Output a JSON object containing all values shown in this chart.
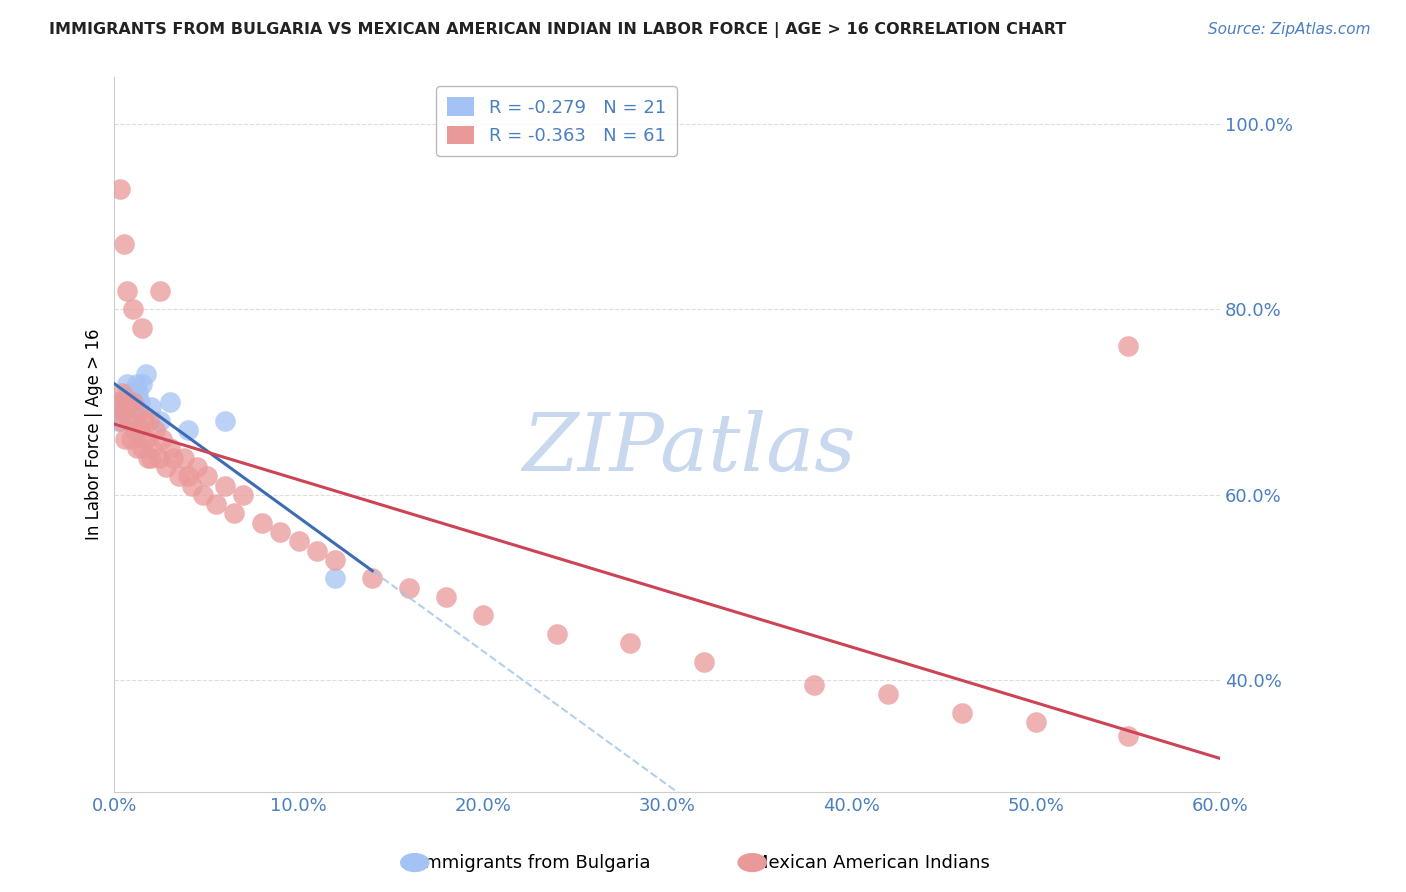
{
  "title": "IMMIGRANTS FROM BULGARIA VS MEXICAN AMERICAN INDIAN IN LABOR FORCE | AGE > 16 CORRELATION CHART",
  "source": "Source: ZipAtlas.com",
  "ylabel": "In Labor Force | Age > 16",
  "xlim": [
    0.0,
    0.6
  ],
  "ylim": [
    0.28,
    1.05
  ],
  "yticks": [
    0.4,
    0.6,
    0.8,
    1.0
  ],
  "ytick_labels": [
    "40.0%",
    "60.0%",
    "80.0%",
    "100.0%"
  ],
  "xticks": [
    0.0,
    0.1,
    0.2,
    0.3,
    0.4,
    0.5,
    0.6
  ],
  "xtick_labels": [
    "0.0%",
    "10.0%",
    "20.0%",
    "30.0%",
    "40.0%",
    "50.0%",
    "60.0%"
  ],
  "legend_entries": [
    {
      "label": "R = -0.279   N = 21",
      "color": "#a4c2f4"
    },
    {
      "label": "R = -0.363   N = 61",
      "color": "#ea9999"
    }
  ],
  "bulgaria_color": "#a4c2f4",
  "mexican_color": "#ea9999",
  "bulgaria_line_color": "#3d6cb5",
  "mexican_line_color": "#cc4455",
  "bulgaria_dash_color": "#9fc5e8",
  "axis_label_color": "#4a7fc1",
  "title_color": "#222222",
  "grid_color": "#dddddd",
  "watermark": "ZIPatlas",
  "watermark_color": "#c8d8ee",
  "bul_x": [
    0.002,
    0.003,
    0.004,
    0.005,
    0.006,
    0.007,
    0.008,
    0.009,
    0.01,
    0.011,
    0.012,
    0.013,
    0.014,
    0.015,
    0.017,
    0.02,
    0.025,
    0.03,
    0.04,
    0.06,
    0.12
  ],
  "bul_y": [
    0.68,
    0.69,
    0.695,
    0.7,
    0.705,
    0.72,
    0.71,
    0.7,
    0.695,
    0.685,
    0.72,
    0.71,
    0.7,
    0.72,
    0.73,
    0.695,
    0.68,
    0.7,
    0.67,
    0.68,
    0.51
  ],
  "mex_x": [
    0.002,
    0.003,
    0.004,
    0.005,
    0.006,
    0.007,
    0.008,
    0.009,
    0.01,
    0.011,
    0.012,
    0.013,
    0.014,
    0.015,
    0.016,
    0.017,
    0.018,
    0.019,
    0.02,
    0.022,
    0.024,
    0.026,
    0.028,
    0.03,
    0.032,
    0.035,
    0.038,
    0.04,
    0.042,
    0.045,
    0.048,
    0.05,
    0.055,
    0.06,
    0.065,
    0.07,
    0.08,
    0.09,
    0.1,
    0.11,
    0.12,
    0.14,
    0.16,
    0.18,
    0.2,
    0.24,
    0.28,
    0.32,
    0.38,
    0.42,
    0.46,
    0.5,
    0.55,
    0.003,
    0.005,
    0.007,
    0.01,
    0.015,
    0.02,
    0.025,
    0.55
  ],
  "mex_y": [
    0.7,
    0.68,
    0.71,
    0.69,
    0.66,
    0.7,
    0.68,
    0.66,
    0.7,
    0.67,
    0.65,
    0.69,
    0.67,
    0.65,
    0.68,
    0.66,
    0.64,
    0.68,
    0.65,
    0.67,
    0.64,
    0.66,
    0.63,
    0.65,
    0.64,
    0.62,
    0.64,
    0.62,
    0.61,
    0.63,
    0.6,
    0.62,
    0.59,
    0.61,
    0.58,
    0.6,
    0.57,
    0.56,
    0.55,
    0.54,
    0.53,
    0.51,
    0.5,
    0.49,
    0.47,
    0.45,
    0.44,
    0.42,
    0.395,
    0.385,
    0.365,
    0.355,
    0.34,
    0.93,
    0.87,
    0.82,
    0.8,
    0.78,
    0.64,
    0.82,
    0.76
  ]
}
